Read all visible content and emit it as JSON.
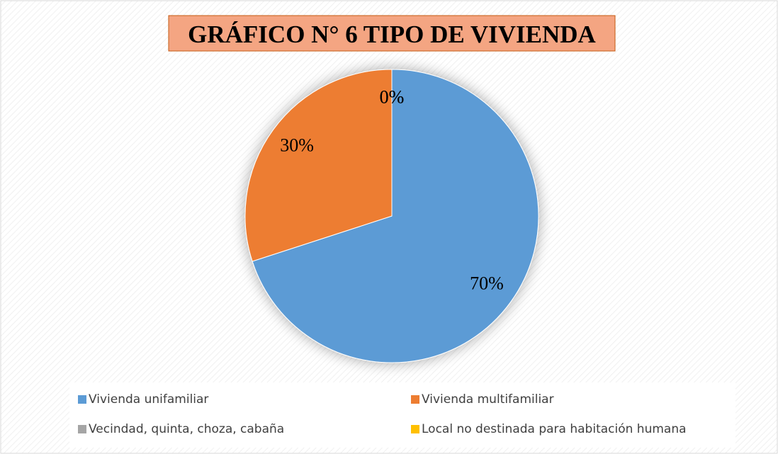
{
  "chart_data": {
    "type": "pie",
    "title": "GRÁFICO N° 6 TIPO DE VIVIENDA",
    "categories": [
      "Vivienda unifamiliar",
      "Vivienda multifamiliar",
      "Vecindad, quinta, choza, cabaña",
      "Local no destinada para habitación humana"
    ],
    "values": [
      70,
      30,
      0,
      0
    ],
    "value_labels": [
      "70%",
      "30%",
      "0%",
      "0%"
    ],
    "colors": [
      "#5b9bd5",
      "#ed7d31",
      "#a5a5a5",
      "#ffc000"
    ]
  }
}
